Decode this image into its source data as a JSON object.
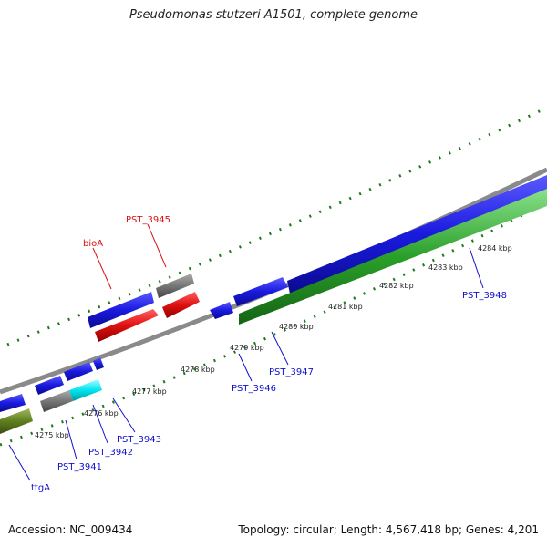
{
  "title": "Pseudomonas stutzeri A1501, complete genome",
  "footer": {
    "accession": "Accession: NC_009434",
    "summary": "Topology: circular; Length: 4,567,418 bp; Genes: 4,201"
  },
  "colors": {
    "forward_cds": "#1a1adf",
    "reverse_cds": "#e01010",
    "pseudo": "#777777",
    "rna": "#00e5ee",
    "green_feature": "#2aa02a",
    "olive_feature": "#5f7f1f",
    "tick": "#1f7a1f",
    "backbone": "#8a8a8a",
    "label_blue": "#1010cc",
    "label_red": "#dd1010"
  },
  "ruler": {
    "labels": [
      "4275 kbp",
      "4276 kbp",
      "4277 kbp",
      "4278 kbp",
      "4279 kbp",
      "4280 kbp",
      "4281 kbp",
      "4282 kbp",
      "4283 kbp",
      "4284 kbp"
    ]
  },
  "genes": [
    {
      "label": "PST_3945",
      "strand": "reverse",
      "color": "red"
    },
    {
      "label": "bioA",
      "strand": "reverse",
      "color": "red"
    },
    {
      "label": "PST_3943",
      "strand": "forward",
      "color": "blue"
    },
    {
      "label": "PST_3942",
      "strand": "forward",
      "color": "blue"
    },
    {
      "label": "PST_3941",
      "strand": "forward",
      "color": "blue"
    },
    {
      "label": "ttgA",
      "strand": "forward",
      "color": "blue"
    },
    {
      "label": "PST_3946",
      "strand": "forward",
      "color": "blue"
    },
    {
      "label": "PST_3947",
      "strand": "forward",
      "color": "blue"
    },
    {
      "label": "PST_3948",
      "strand": "forward",
      "color": "blue"
    }
  ]
}
